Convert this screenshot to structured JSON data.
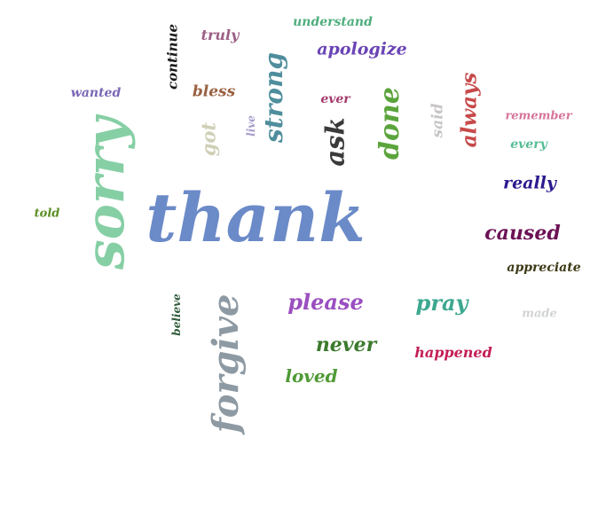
{
  "words": [
    {
      "text": "thank",
      "color": "#6b8ac8",
      "rotation": 0
    },
    {
      "text": "sorry",
      "color": "#86cfa5",
      "rotation": -90
    },
    {
      "text": "forgive",
      "color": "#8e9aa3",
      "rotation": -90
    },
    {
      "text": "understand",
      "color": "#4fae7e",
      "rotation": 0
    },
    {
      "text": "truly",
      "color": "#9c5f86",
      "rotation": 0
    },
    {
      "text": "continue",
      "color": "#1a1a1a",
      "rotation": -90
    },
    {
      "text": "apologize",
      "color": "#6a44b5",
      "rotation": 0
    },
    {
      "text": "strong",
      "color": "#4f8e9c",
      "rotation": -90
    },
    {
      "text": "wanted",
      "color": "#7a68b4",
      "rotation": 0
    },
    {
      "text": "bless",
      "color": "#9a6140",
      "rotation": 0
    },
    {
      "text": "ever",
      "color": "#a53b6d",
      "rotation": 0
    },
    {
      "text": "done",
      "color": "#5ba43c",
      "rotation": -90
    },
    {
      "text": "said",
      "color": "#c8c5c7",
      "rotation": -90
    },
    {
      "text": "always",
      "color": "#c7494a",
      "rotation": -90
    },
    {
      "text": "remember",
      "color": "#d6749a",
      "rotation": 0
    },
    {
      "text": "live",
      "color": "#a59bc9",
      "rotation": -90
    },
    {
      "text": "got",
      "color": "#cfd0b7",
      "rotation": -90
    },
    {
      "text": "ask",
      "color": "#3a3a3a",
      "rotation": -90
    },
    {
      "text": "every",
      "color": "#56bd96",
      "rotation": 0
    },
    {
      "text": "really",
      "color": "#2a1a8e",
      "rotation": 0
    },
    {
      "text": "told",
      "color": "#5a8e23",
      "rotation": 0
    },
    {
      "text": "caused",
      "color": "#6c1255",
      "rotation": 0
    },
    {
      "text": "appreciate",
      "color": "#3d3a16",
      "rotation": 0
    },
    {
      "text": "believe",
      "color": "#2f5a3a",
      "rotation": -90
    },
    {
      "text": "please",
      "color": "#9a4fc0",
      "rotation": 0
    },
    {
      "text": "pray",
      "color": "#3ca88f",
      "rotation": 0
    },
    {
      "text": "made",
      "color": "#d2d4d4",
      "rotation": 0
    },
    {
      "text": "never",
      "color": "#3b7a2c",
      "rotation": 0
    },
    {
      "text": "happened",
      "color": "#c41f56",
      "rotation": 0
    },
    {
      "text": "loved",
      "color": "#4f9a35",
      "rotation": 0
    }
  ]
}
